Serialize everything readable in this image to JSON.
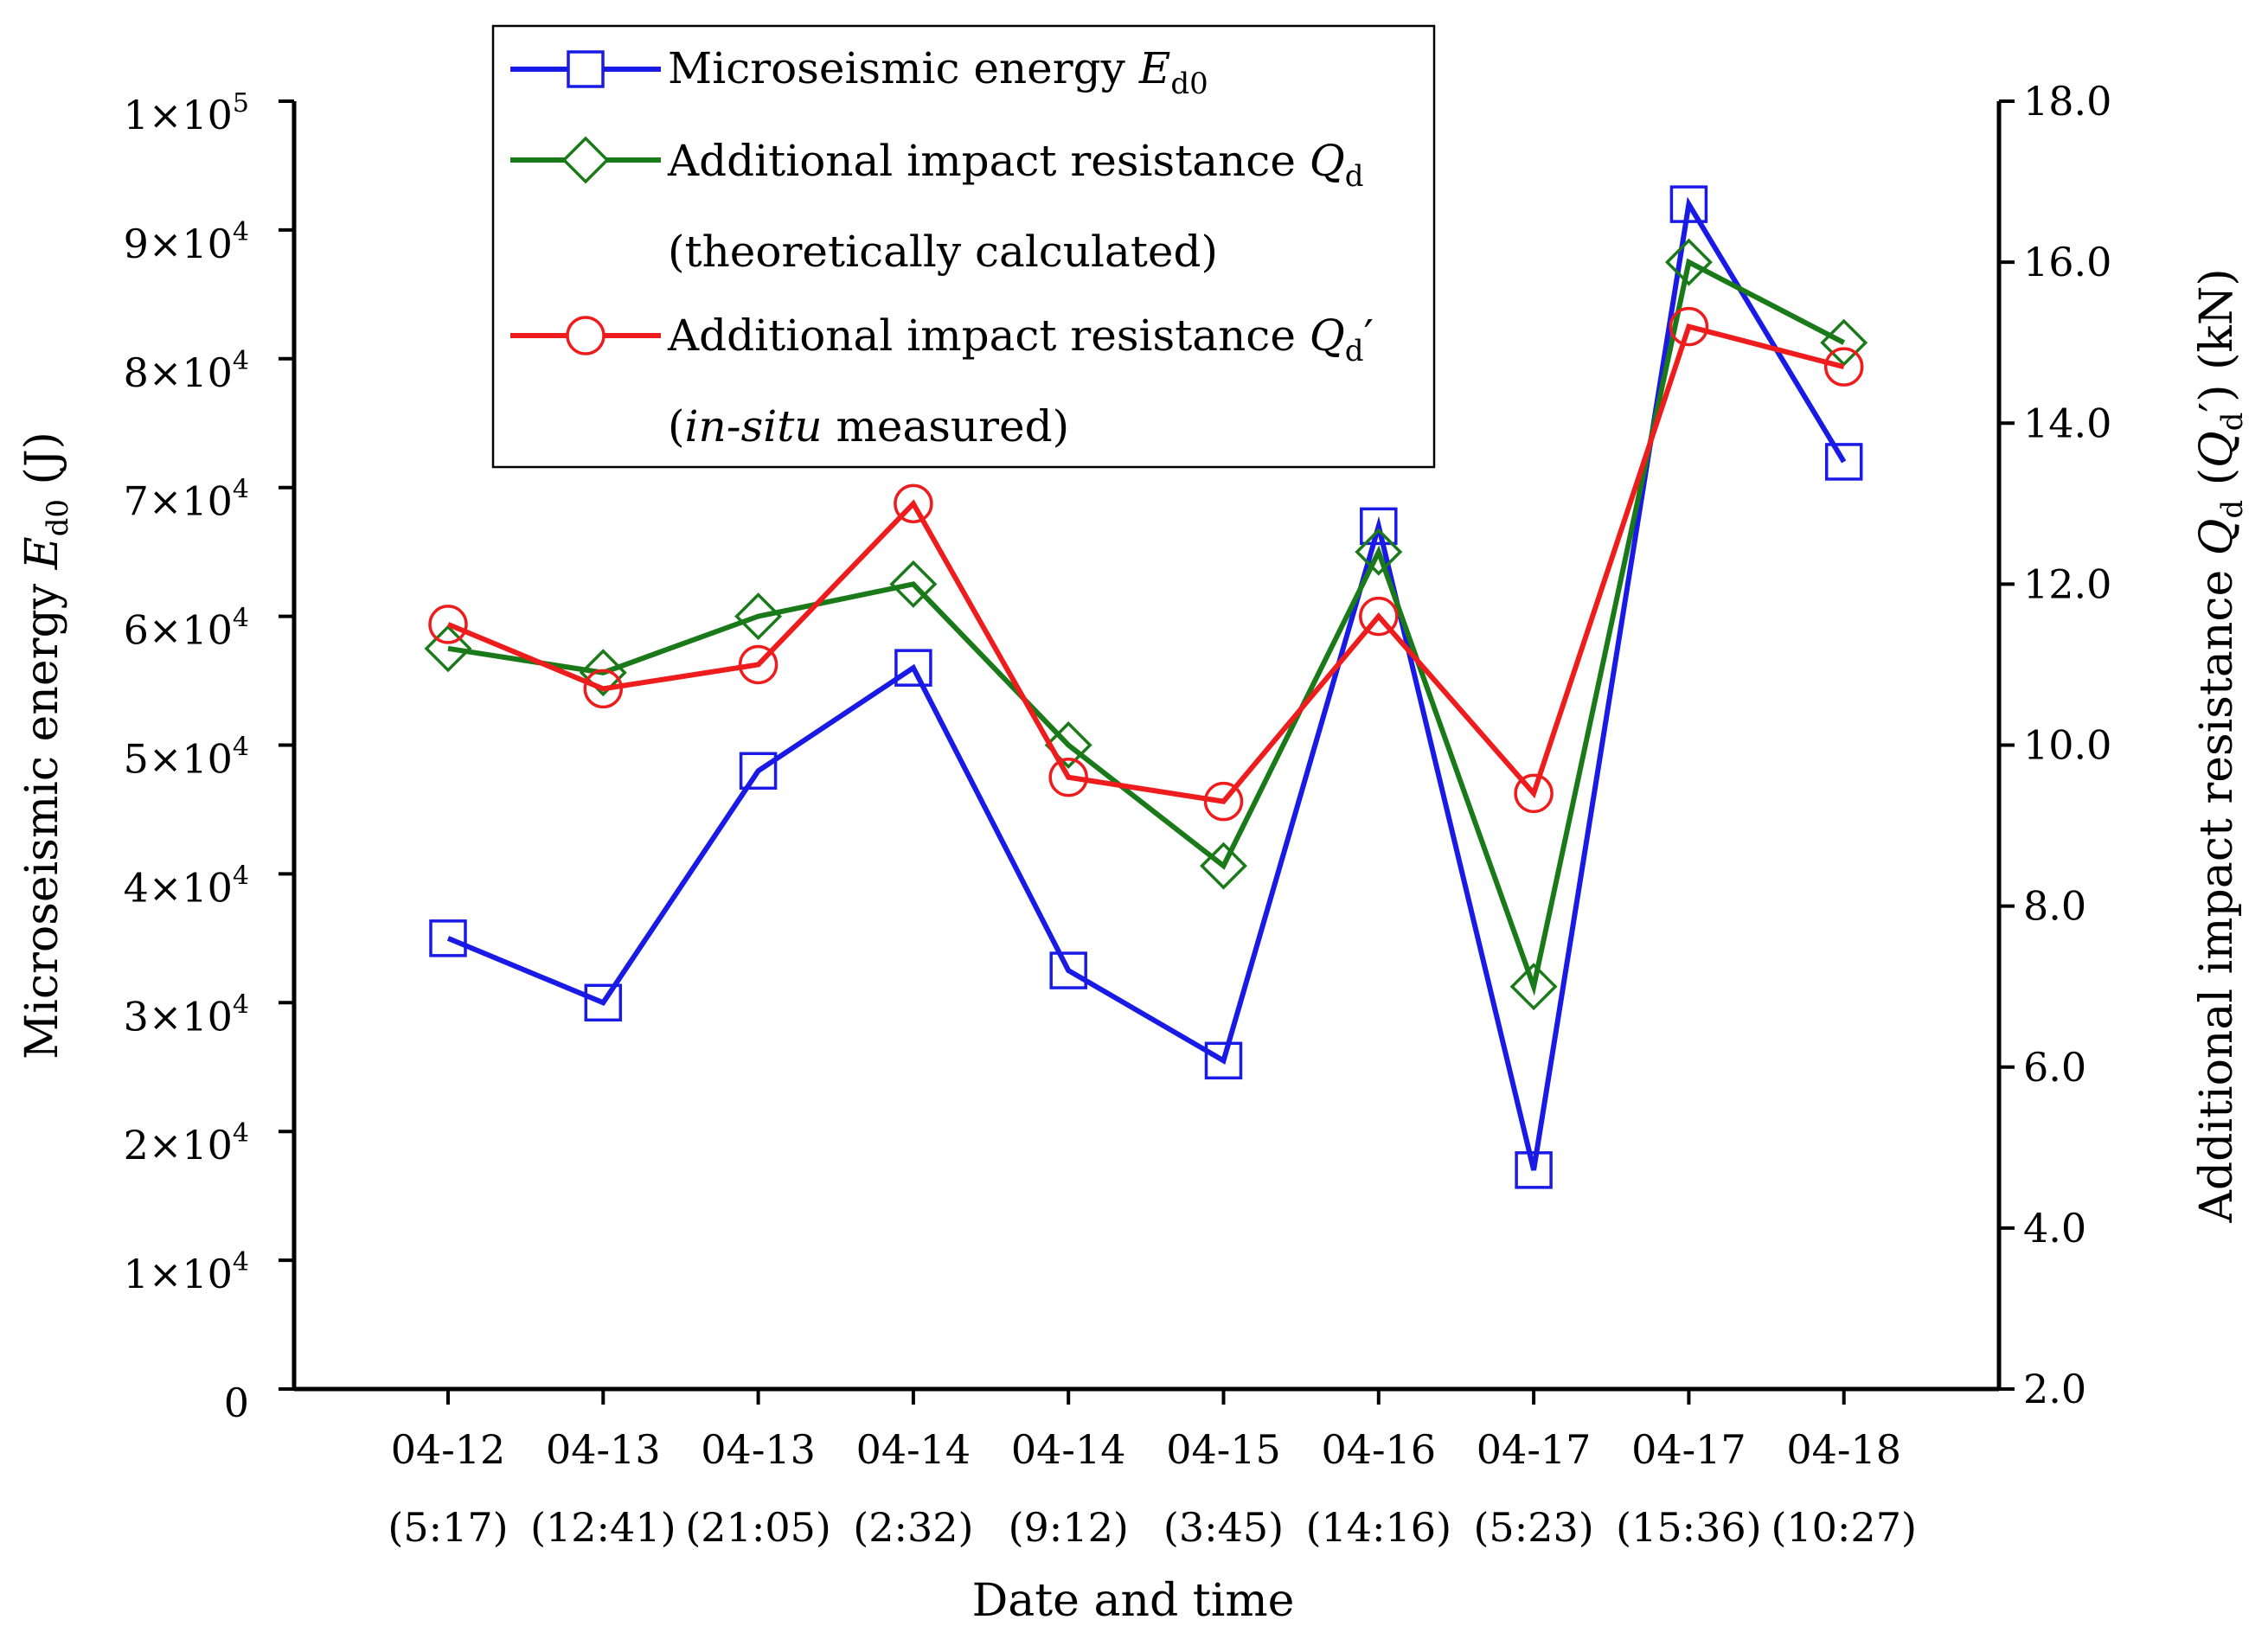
{
  "chart_data": {
    "type": "line",
    "title": "",
    "xlabel": "Date and time",
    "categories": [
      [
        "04-12",
        "(5:17)"
      ],
      [
        "04-13",
        "(12:41)"
      ],
      [
        "04-13",
        "(21:05)"
      ],
      [
        "04-14",
        "(2:32)"
      ],
      [
        "04-14",
        "(9:12)"
      ],
      [
        "04-15",
        "(3:45)"
      ],
      [
        "04-16",
        "(14:16)"
      ],
      [
        "04-17",
        "(5:23)"
      ],
      [
        "04-17",
        "(15:36)"
      ],
      [
        "04-18",
        "(10:27)"
      ]
    ],
    "y_left": {
      "label_main": "Microseismic energy ",
      "label_var": "E",
      "label_sub": "d0",
      "label_unit": " (J)",
      "ylim": [
        0,
        100000
      ],
      "ticks": [
        {
          "mantissa": "1×10",
          "exp": "5"
        },
        {
          "mantissa": "9×10",
          "exp": "4"
        },
        {
          "mantissa": "8×10",
          "exp": "4"
        },
        {
          "mantissa": "7×10",
          "exp": "4"
        },
        {
          "mantissa": "6×10",
          "exp": "4"
        },
        {
          "mantissa": "5×10",
          "exp": "4"
        },
        {
          "mantissa": "4×10",
          "exp": "4"
        },
        {
          "mantissa": "3×10",
          "exp": "4"
        },
        {
          "mantissa": "2×10",
          "exp": "4"
        },
        {
          "mantissa": "1×10",
          "exp": "4"
        },
        {
          "mantissa": "0",
          "exp": ""
        }
      ]
    },
    "y_right": {
      "label_main": "Additional impact resistance ",
      "label_var": "Q",
      "label_sub": "d",
      "label_paren_open": " (",
      "label_var2": "Q",
      "label_sub2": "d",
      "label_prime": "′",
      "label_unit": ") (kN)",
      "ylim": [
        2.0,
        18.0
      ],
      "ticks": [
        "18.0",
        "16.0",
        "14.0",
        "12.0",
        "10.0",
        "8.0",
        "6.0",
        "4.0",
        "2.0"
      ]
    },
    "series": [
      {
        "name": "Microseismic energy",
        "name_var": "E",
        "name_sub": "d0",
        "axis": "left",
        "marker": "square",
        "color": "#1a1ae6",
        "values": [
          35000,
          30000,
          48000,
          56000,
          32500,
          25500,
          67000,
          17000,
          92000,
          72000
        ]
      },
      {
        "name": "Additional impact resistance ",
        "name_var": "Q",
        "name_sub": "d",
        "name_line2": "(theoretically calculated)",
        "axis": "right",
        "marker": "diamond",
        "color": "#1a7a1a",
        "values": [
          11.2,
          10.9,
          11.6,
          12.0,
          10.0,
          8.5,
          12.4,
          7.0,
          16.0,
          15.0
        ]
      },
      {
        "name": "Additional impact resistance ",
        "name_var": "Q",
        "name_sub": "d",
        "name_prime": "′",
        "name_line2_italic": "in-situ",
        "name_line2_rest": " measured)",
        "name_line2_open": "(",
        "axis": "right",
        "marker": "circle",
        "color": "#ee1c1c",
        "values": [
          11.5,
          10.7,
          11.0,
          13.0,
          9.6,
          9.3,
          11.6,
          9.4,
          15.2,
          14.7
        ]
      }
    ],
    "legend_position": "top-center",
    "grid": false
  }
}
